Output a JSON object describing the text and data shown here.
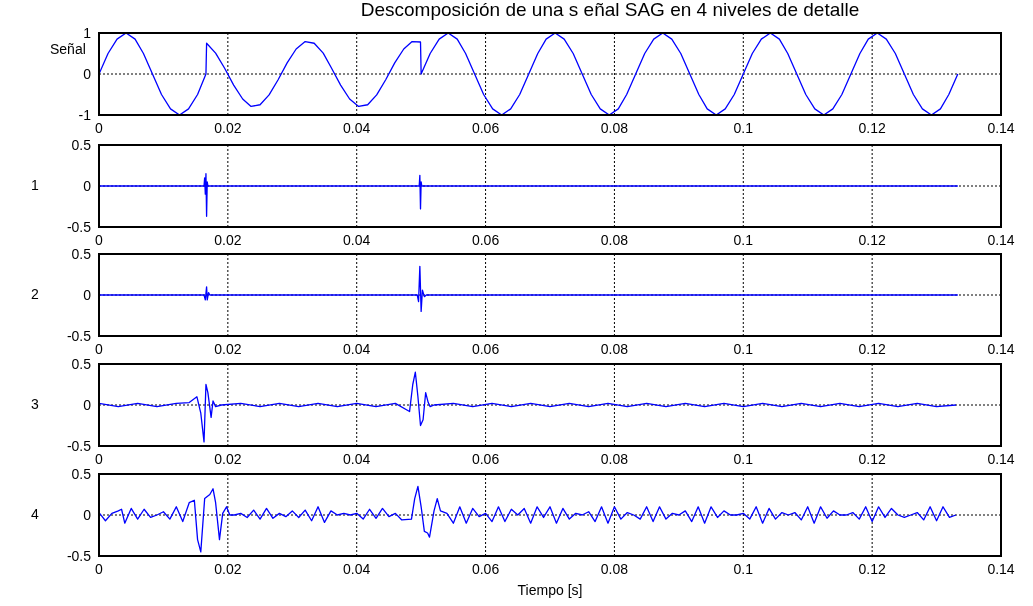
{
  "chart_data": [
    {
      "type": "line",
      "title": "Descomposición de una s eñal SAG en 4 niveles de detalle",
      "ylabel": "Señal",
      "color": "#0000ff",
      "x": [
        0,
        0.0014,
        0.0028,
        0.0042,
        0.0056,
        0.0069,
        0.0083,
        0.0097,
        0.0111,
        0.0125,
        0.0139,
        0.0153,
        0.0166,
        0.0167,
        0.0181,
        0.0195,
        0.0209,
        0.0223,
        0.0236,
        0.025,
        0.0264,
        0.0278,
        0.0292,
        0.0306,
        0.032,
        0.0334,
        0.0348,
        0.0361,
        0.0375,
        0.0389,
        0.0403,
        0.0417,
        0.0431,
        0.0445,
        0.0459,
        0.0473,
        0.0486,
        0.0499,
        0.05,
        0.0514,
        0.0528,
        0.0542,
        0.0556,
        0.0569,
        0.0583,
        0.0597,
        0.0611,
        0.0625,
        0.0639,
        0.0653,
        0.0667,
        0.0681,
        0.0694,
        0.0708,
        0.0722,
        0.0736,
        0.075,
        0.0764,
        0.0778,
        0.0792,
        0.0806,
        0.0819,
        0.0833,
        0.0847,
        0.0861,
        0.0875,
        0.0889,
        0.0903,
        0.0917,
        0.0931,
        0.0944,
        0.0958,
        0.0972,
        0.0986,
        0.1,
        0.1014,
        0.1028,
        0.1042,
        0.1056,
        0.1069,
        0.1083,
        0.1097,
        0.1111,
        0.1125,
        0.1139,
        0.1153,
        0.1167,
        0.1181,
        0.1194,
        0.1208,
        0.1222,
        0.1236,
        0.125,
        0.1264,
        0.1278,
        0.1292,
        0.1306,
        0.1319,
        0.1333
      ],
      "values": [
        0,
        0.5,
        0.85,
        1,
        0.85,
        0.5,
        0,
        -0.5,
        -0.85,
        -1,
        -0.85,
        -0.5,
        0,
        0.75,
        0.51,
        0.14,
        -0.27,
        -0.61,
        -0.79,
        -0.75,
        -0.51,
        -0.14,
        0.27,
        0.61,
        0.79,
        0.75,
        0.51,
        0.14,
        -0.27,
        -0.61,
        -0.79,
        -0.75,
        -0.51,
        -0.14,
        0.27,
        0.61,
        0.79,
        0.78,
        0,
        0.5,
        0.85,
        1,
        0.85,
        0.5,
        0,
        -0.5,
        -0.85,
        -1,
        -0.85,
        -0.5,
        0,
        0.5,
        0.85,
        1,
        0.85,
        0.5,
        0,
        -0.5,
        -0.85,
        -1,
        -0.85,
        -0.5,
        0,
        0.5,
        0.85,
        1,
        0.85,
        0.5,
        0,
        -0.5,
        -0.85,
        -1,
        -0.85,
        -0.5,
        0,
        0.5,
        0.85,
        1,
        0.85,
        0.5,
        0,
        -0.5,
        -0.85,
        -1,
        -0.85,
        -0.5,
        0,
        0.5,
        0.85,
        1,
        0.85,
        0.5,
        0,
        -0.5,
        -0.85,
        -1,
        -0.85,
        -0.5,
        0
      ],
      "xlim": [
        0,
        0.14
      ],
      "xticks": [
        0,
        0.02,
        0.04,
        0.06,
        0.08,
        0.1,
        0.12,
        0.14
      ],
      "ylim": [
        -1,
        1
      ],
      "yticks": [
        -1,
        0,
        1
      ],
      "grid": true
    },
    {
      "type": "line",
      "ylabel": "1",
      "color": "#0000ff",
      "x": [
        0,
        0.0163,
        0.0164,
        0.0165,
        0.0166,
        0.0167,
        0.0168,
        0.0169,
        0.0497,
        0.0498,
        0.0499,
        0.05,
        0.0501,
        0.1333
      ],
      "values": [
        0,
        0,
        0.1,
        -0.1,
        0.15,
        -0.37,
        0.05,
        0,
        0,
        0.13,
        -0.28,
        0.05,
        0,
        0
      ],
      "xlim": [
        0,
        0.14
      ],
      "xticks": [
        0,
        0.02,
        0.04,
        0.06,
        0.08,
        0.1,
        0.12,
        0.14
      ],
      "ylim": [
        -0.5,
        0.5
      ],
      "yticks": [
        -0.5,
        0,
        0.5
      ],
      "grid": true
    },
    {
      "type": "line",
      "ylabel": "2",
      "color": "#0000ff",
      "x": [
        0,
        0.0163,
        0.0165,
        0.0167,
        0.0168,
        0.017,
        0.0172,
        0.0494,
        0.0496,
        0.0498,
        0.05,
        0.0502,
        0.0505,
        0.0508,
        0.1333
      ],
      "values": [
        0,
        0,
        -0.06,
        0.1,
        -0.06,
        0.03,
        0,
        0,
        -0.08,
        0.35,
        -0.2,
        0.06,
        -0.02,
        0,
        0
      ],
      "xlim": [
        0,
        0.14
      ],
      "xticks": [
        0,
        0.02,
        0.04,
        0.06,
        0.08,
        0.1,
        0.12,
        0.14
      ],
      "ylim": [
        -0.5,
        0.5
      ],
      "yticks": [
        -0.5,
        0,
        0.5
      ],
      "grid": true
    },
    {
      "type": "line",
      "ylabel": "3",
      "color": "#0000ff",
      "x": [
        0,
        0.003,
        0.006,
        0.009,
        0.012,
        0.014,
        0.0152,
        0.0158,
        0.0163,
        0.0166,
        0.0169,
        0.0174,
        0.0177,
        0.0181,
        0.019,
        0.022,
        0.025,
        0.028,
        0.031,
        0.034,
        0.037,
        0.04,
        0.043,
        0.046,
        0.0482,
        0.0487,
        0.0491,
        0.0495,
        0.0499,
        0.0503,
        0.0507,
        0.0511,
        0.0514,
        0.052,
        0.055,
        0.058,
        0.061,
        0.064,
        0.067,
        0.07,
        0.073,
        0.076,
        0.079,
        0.082,
        0.085,
        0.088,
        0.091,
        0.094,
        0.097,
        0.1,
        0.103,
        0.106,
        0.109,
        0.112,
        0.115,
        0.118,
        0.121,
        0.124,
        0.127,
        0.13,
        0.133
      ],
      "values": [
        0.02,
        -0.02,
        0.02,
        -0.02,
        0.02,
        0.03,
        0.1,
        -0.1,
        -0.45,
        0.25,
        0.15,
        -0.15,
        0.05,
        -0.02,
        0,
        0.02,
        -0.02,
        0.02,
        -0.02,
        0.02,
        -0.02,
        0.02,
        -0.02,
        0.02,
        -0.08,
        0.25,
        0.4,
        0.1,
        -0.25,
        -0.18,
        0.15,
        0.03,
        -0.02,
        0,
        0.02,
        -0.02,
        0.02,
        -0.02,
        0.02,
        -0.02,
        0.02,
        -0.02,
        0.02,
        -0.02,
        0.02,
        -0.02,
        0.02,
        -0.02,
        0.02,
        -0.02,
        0.02,
        -0.02,
        0.02,
        -0.02,
        0.02,
        -0.02,
        0.02,
        -0.02,
        0.02,
        -0.02,
        0
      ],
      "xlim": [
        0,
        0.14
      ],
      "xticks": [
        0,
        0.02,
        0.04,
        0.06,
        0.08,
        0.1,
        0.12,
        0.14
      ],
      "ylim": [
        -0.5,
        0.5
      ],
      "yticks": [
        -0.5,
        0,
        0.5
      ],
      "grid": true
    },
    {
      "type": "line",
      "ylabel": "4",
      "xlabel": "Tiempo [s]",
      "color": "#0000ff",
      "x": [
        0,
        0.001,
        0.002,
        0.003,
        0.0035,
        0.004,
        0.005,
        0.006,
        0.007,
        0.008,
        0.009,
        0.01,
        0.011,
        0.012,
        0.013,
        0.014,
        0.0148,
        0.0153,
        0.0158,
        0.0164,
        0.0172,
        0.0177,
        0.0181,
        0.0187,
        0.0192,
        0.0198,
        0.0203,
        0.021,
        0.022,
        0.023,
        0.024,
        0.025,
        0.026,
        0.027,
        0.028,
        0.029,
        0.03,
        0.031,
        0.032,
        0.033,
        0.034,
        0.035,
        0.036,
        0.037,
        0.038,
        0.039,
        0.04,
        0.041,
        0.042,
        0.043,
        0.044,
        0.045,
        0.046,
        0.047,
        0.0485,
        0.049,
        0.0495,
        0.05,
        0.0505,
        0.051,
        0.0513,
        0.052,
        0.0525,
        0.053,
        0.054,
        0.055,
        0.056,
        0.057,
        0.058,
        0.059,
        0.06,
        0.061,
        0.062,
        0.063,
        0.064,
        0.065,
        0.066,
        0.067,
        0.068,
        0.069,
        0.07,
        0.071,
        0.072,
        0.073,
        0.074,
        0.075,
        0.076,
        0.077,
        0.078,
        0.079,
        0.08,
        0.081,
        0.082,
        0.083,
        0.084,
        0.085,
        0.086,
        0.087,
        0.088,
        0.089,
        0.09,
        0.091,
        0.092,
        0.093,
        0.094,
        0.095,
        0.096,
        0.097,
        0.098,
        0.099,
        0.1,
        0.101,
        0.102,
        0.103,
        0.104,
        0.105,
        0.106,
        0.107,
        0.108,
        0.109,
        0.11,
        0.111,
        0.112,
        0.113,
        0.114,
        0.115,
        0.116,
        0.117,
        0.118,
        0.119,
        0.12,
        0.121,
        0.122,
        0.123,
        0.124,
        0.125,
        0.126,
        0.127,
        0.128,
        0.129,
        0.13,
        0.131,
        0.132,
        0.133
      ],
      "values": [
        0.03,
        -0.07,
        0.02,
        0.05,
        0.07,
        -0.1,
        0.08,
        -0.05,
        0.07,
        -0.03,
        0,
        0.04,
        -0.05,
        0.1,
        -0.08,
        0.15,
        0.18,
        -0.3,
        -0.45,
        0.2,
        0.25,
        0.32,
        0.15,
        -0.3,
        0.02,
        0.1,
        0,
        0,
        0.02,
        -0.03,
        0.06,
        -0.05,
        0.08,
        -0.04,
        0.02,
        -0.02,
        0.05,
        -0.03,
        0.06,
        -0.07,
        0.1,
        -0.09,
        0.05,
        0,
        0.02,
        0,
        0.02,
        -0.05,
        0.07,
        -0.04,
        0.08,
        -0.02,
        0.02,
        -0.06,
        -0.05,
        0.2,
        0.35,
        0.1,
        -0.2,
        -0.22,
        -0.27,
        0.05,
        0.2,
        0.05,
        0.02,
        -0.1,
        0.1,
        -0.1,
        0.08,
        -0.02,
        0.02,
        -0.08,
        0.1,
        -0.08,
        0.07,
        0,
        0.08,
        -0.1,
        0.1,
        -0.03,
        0.1,
        -0.1,
        0.08,
        -0.05,
        0.02,
        0,
        0.04,
        -0.08,
        0.1,
        -0.1,
        0.1,
        -0.05,
        0.03,
        0,
        -0.05,
        0.1,
        -0.08,
        0.1,
        -0.05,
        0.02,
        0,
        0.05,
        -0.08,
        0.1,
        -0.1,
        0.1,
        -0.03,
        0.05,
        0,
        0,
        0.02,
        -0.05,
        0.1,
        -0.1,
        0.08,
        -0.05,
        0.03,
        0,
        0.03,
        -0.06,
        0.1,
        -0.1,
        0.1,
        -0.04,
        0.05,
        0,
        0,
        0.03,
        -0.05,
        0.1,
        -0.08,
        0.1,
        -0.03,
        0.08,
        0,
        -0.03,
        0,
        0.03,
        -0.06,
        0.1,
        -0.07,
        0.1,
        -0.03,
        0
      ],
      "xlim": [
        0,
        0.14
      ],
      "xticks": [
        0,
        0.02,
        0.04,
        0.06,
        0.08,
        0.1,
        0.12,
        0.14
      ],
      "ylim": [
        -0.5,
        0.5
      ],
      "yticks": [
        -0.5,
        0,
        0.5
      ],
      "grid": true
    }
  ]
}
